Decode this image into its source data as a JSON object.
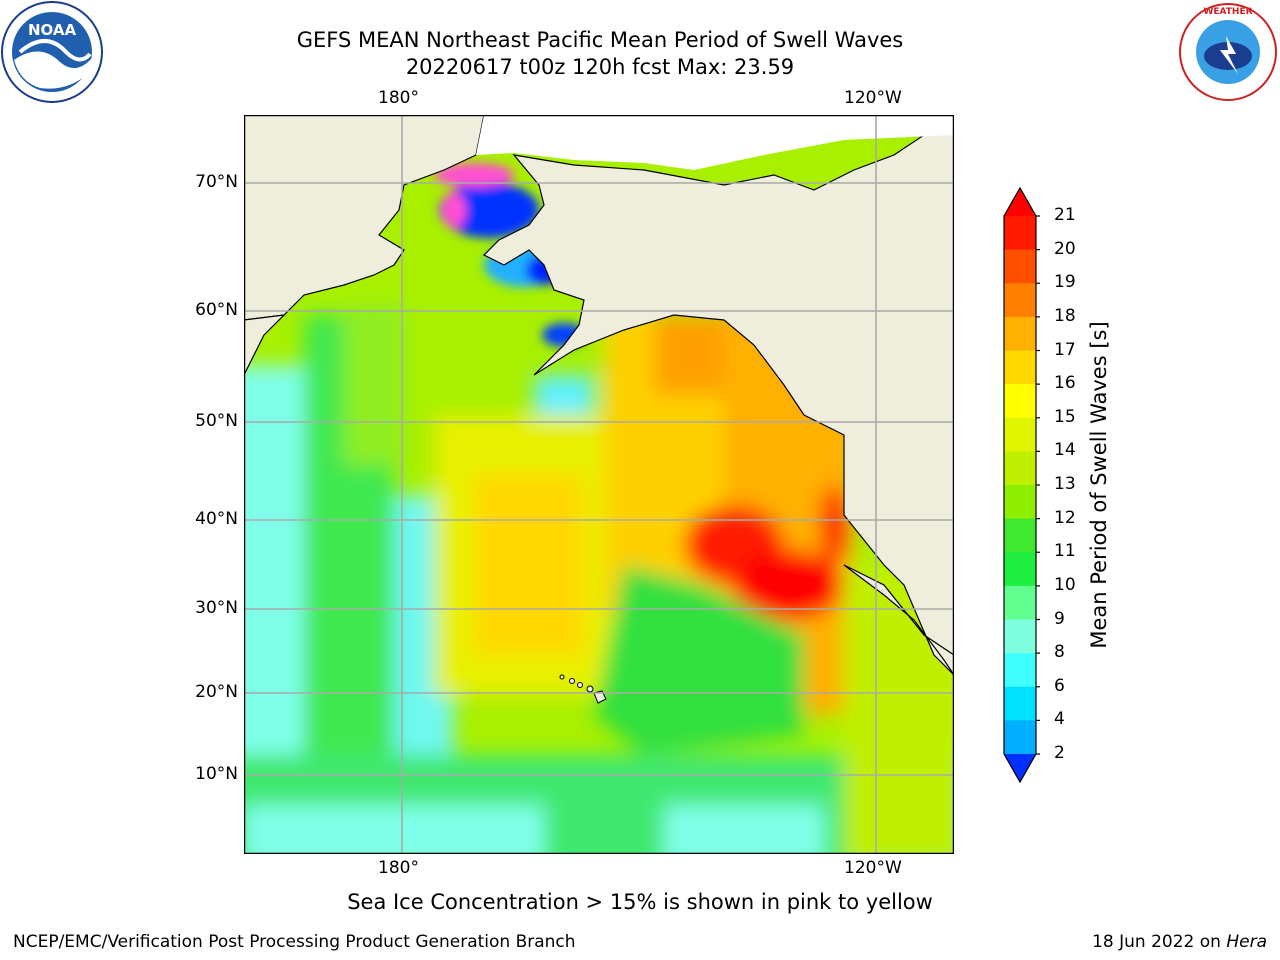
{
  "title_line1": "GEFS MEAN Northeast Pacific Mean Period of Swell Waves",
  "title_line2": "20220617 t00z 120h fcst   Max: 23.59",
  "lon_labels": [
    "180°",
    "120°W"
  ],
  "lat_labels": [
    "70°N",
    "60°N",
    "50°N",
    "40°N",
    "30°N",
    "20°N",
    "10°N"
  ],
  "colorbar": {
    "title": "Mean Period of Swell Waves [s]",
    "ticks": [
      "21",
      "20",
      "19",
      "18",
      "17",
      "16",
      "15",
      "14",
      "13",
      "12",
      "11",
      "10",
      "9",
      "8",
      "6",
      "4",
      "2"
    ],
    "colors": [
      "#ff0000",
      "#ff1a00",
      "#ff5000",
      "#ff8000",
      "#ffb000",
      "#ffd800",
      "#ffff00",
      "#e0f500",
      "#c0f000",
      "#90ee00",
      "#40e830",
      "#20ee40",
      "#60ff90",
      "#80ffe0",
      "#40ffff",
      "#00e0ff",
      "#00b0ff",
      "#0070ff",
      "#0030ff"
    ]
  },
  "note": "Sea Ice Concentration > 15% is shown in pink to yellow",
  "footer_left": "NCEP/EMC/Verification Post Processing Product Generation Branch",
  "footer_right_prefix": "18 Jun 2022 on ",
  "footer_right_host": "Hera",
  "logos": {
    "left": "noaa-logo",
    "right": "nws-logo"
  }
}
